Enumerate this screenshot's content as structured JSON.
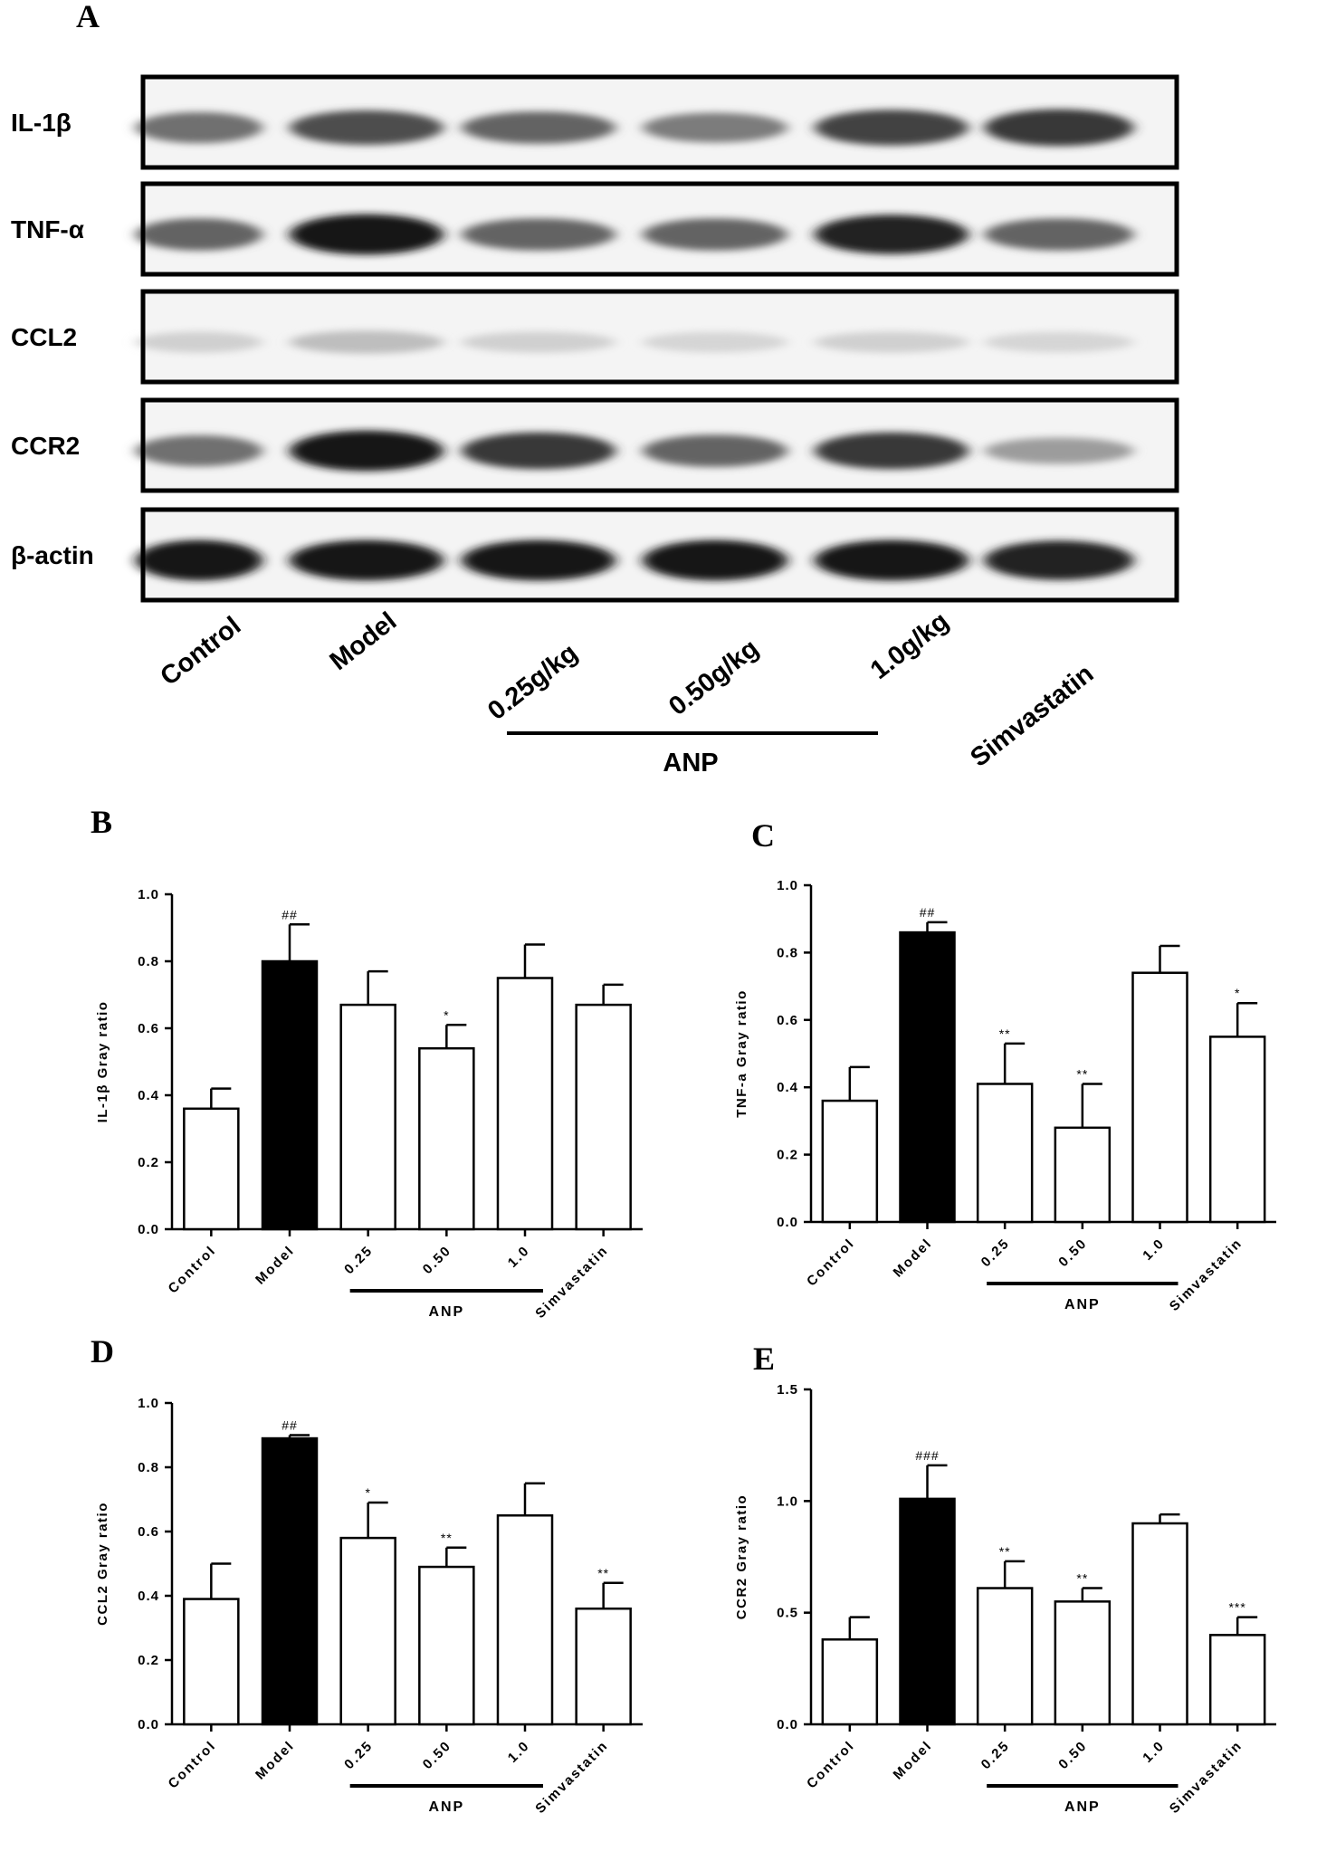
{
  "panel_a": {
    "letter": "A",
    "blots": [
      {
        "label": "IL-1β",
        "key": "il1b"
      },
      {
        "label": "TNF-α",
        "key": "tnfa"
      },
      {
        "label": "CCL2",
        "key": "ccl2"
      },
      {
        "label": "CCR2",
        "key": "ccr2"
      },
      {
        "label": "β-actin",
        "key": "actin"
      }
    ],
    "lanes": [
      "Control",
      "Model",
      "0.25g/kg",
      "0.50g/kg",
      "1.0g/kg",
      "Simvastatin"
    ],
    "group_label": "ANP",
    "band_intensity": {
      "il1b": [
        0.55,
        0.7,
        0.6,
        0.5,
        0.75,
        0.8
      ],
      "tnfa": [
        0.6,
        0.95,
        0.6,
        0.6,
        0.9,
        0.6
      ],
      "ccl2": [
        0.12,
        0.2,
        0.12,
        0.1,
        0.12,
        0.1
      ],
      "ccr2": [
        0.55,
        0.95,
        0.8,
        0.6,
        0.8,
        0.35
      ],
      "actin": [
        0.95,
        0.95,
        0.95,
        0.95,
        0.95,
        0.9
      ]
    }
  },
  "chart_data": [
    {
      "type": "bar",
      "panel": "B",
      "ylabel": "IL-1β Gray ratio",
      "categories": [
        "Control",
        "Model",
        "0.25",
        "0.50",
        "1.0",
        "Simvastatin"
      ],
      "values": [
        0.36,
        0.8,
        0.67,
        0.54,
        0.75,
        0.67
      ],
      "errors": [
        0.06,
        0.11,
        0.1,
        0.07,
        0.1,
        0.06
      ],
      "significance": [
        "",
        "##",
        "",
        "*",
        "",
        ""
      ],
      "ylim": [
        0,
        1.0
      ],
      "yticks": [
        "0.0",
        "0.2",
        "0.4",
        "0.6",
        "0.8",
        "1.0"
      ],
      "group_label": "ANP",
      "bar_colors": [
        "#ffffff",
        "#000000",
        "#ffffff",
        "#ffffff",
        "#ffffff",
        "#ffffff"
      ]
    },
    {
      "type": "bar",
      "panel": "C",
      "ylabel": "TNF-a Gray ratio",
      "categories": [
        "Control",
        "Model",
        "0.25",
        "0.50",
        "1.0",
        "Simvastatin"
      ],
      "values": [
        0.36,
        0.86,
        0.41,
        0.28,
        0.74,
        0.55
      ],
      "errors": [
        0.1,
        0.03,
        0.12,
        0.13,
        0.08,
        0.1
      ],
      "significance": [
        "",
        "##",
        "**",
        "**",
        "",
        "*"
      ],
      "ylim": [
        0,
        1.0
      ],
      "yticks": [
        "0.0",
        "0.2",
        "0.4",
        "0.6",
        "0.8",
        "1.0"
      ],
      "group_label": "ANP",
      "bar_colors": [
        "#ffffff",
        "#000000",
        "#ffffff",
        "#ffffff",
        "#ffffff",
        "#ffffff"
      ]
    },
    {
      "type": "bar",
      "panel": "D",
      "ylabel": "CCL2 Gray ratio",
      "categories": [
        "Control",
        "Model",
        "0.25",
        "0.50",
        "1.0",
        "Simvastatin"
      ],
      "values": [
        0.39,
        0.89,
        0.58,
        0.49,
        0.65,
        0.36
      ],
      "errors": [
        0.11,
        0.01,
        0.11,
        0.06,
        0.1,
        0.08
      ],
      "significance": [
        "",
        "##",
        "*",
        "**",
        "",
        "**"
      ],
      "ylim": [
        0,
        1.0
      ],
      "yticks": [
        "0.0",
        "0.2",
        "0.4",
        "0.6",
        "0.8",
        "1.0"
      ],
      "group_label": "ANP",
      "bar_colors": [
        "#ffffff",
        "#000000",
        "#ffffff",
        "#ffffff",
        "#ffffff",
        "#ffffff"
      ]
    },
    {
      "type": "bar",
      "panel": "E",
      "ylabel": "CCR2 Gray ratio",
      "categories": [
        "Control",
        "Model",
        "0.25",
        "0.50",
        "1.0",
        "Simvastatin"
      ],
      "values": [
        0.38,
        1.01,
        0.61,
        0.55,
        0.9,
        0.4
      ],
      "errors": [
        0.1,
        0.15,
        0.12,
        0.06,
        0.04,
        0.08
      ],
      "significance": [
        "",
        "###",
        "**",
        "**",
        "",
        "***"
      ],
      "ylim": [
        0,
        1.5
      ],
      "yticks": [
        "0.0",
        "0.5",
        "1.0",
        "1.5"
      ],
      "group_label": "ANP",
      "bar_colors": [
        "#ffffff",
        "#000000",
        "#ffffff",
        "#ffffff",
        "#ffffff",
        "#ffffff"
      ]
    }
  ]
}
